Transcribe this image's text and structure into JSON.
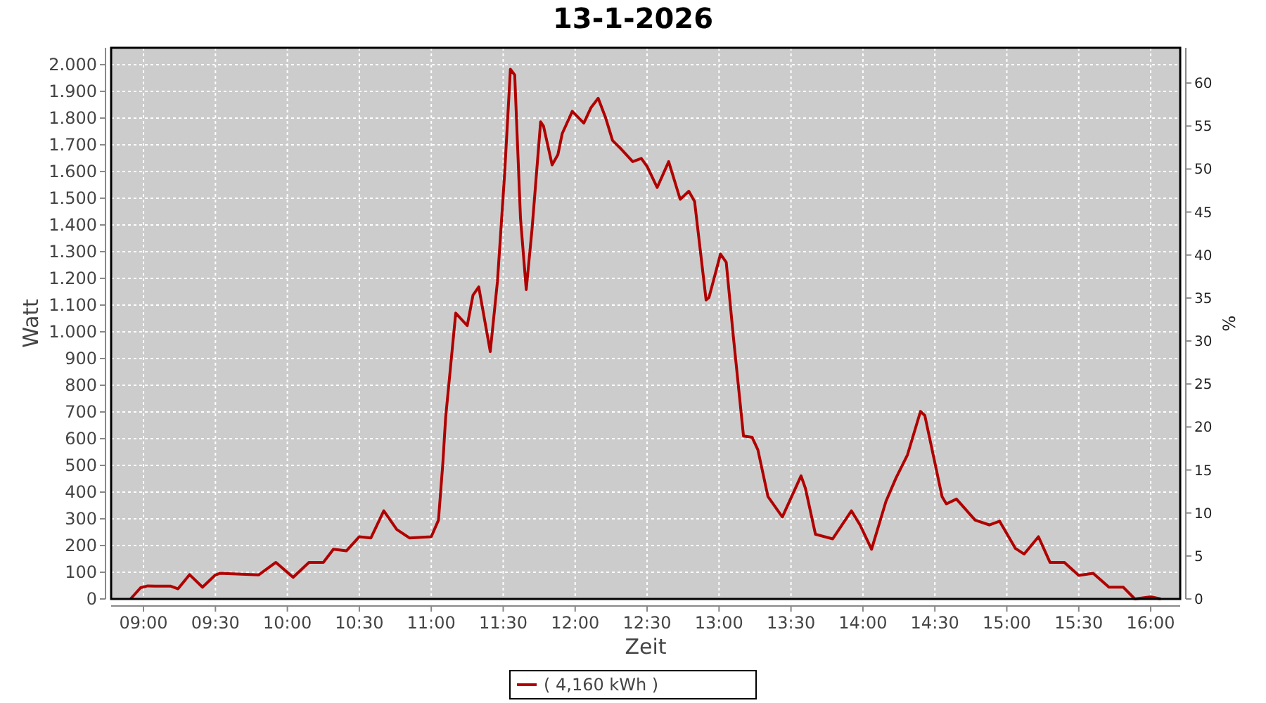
{
  "chart_data": {
    "type": "line",
    "title": "13-1-2026",
    "xlabel": "Zeit",
    "ylabel": "Watt",
    "y2label": "%",
    "x": [
      8.91,
      8.98,
      9.03,
      9.08,
      9.19,
      9.24,
      9.32,
      9.41,
      9.5,
      9.53,
      9.8,
      9.92,
      10.04,
      10.15,
      10.25,
      10.32,
      10.41,
      10.5,
      10.58,
      10.67,
      10.76,
      10.85,
      11.0,
      11.05,
      11.08,
      11.1,
      11.17,
      11.25,
      11.29,
      11.33,
      11.41,
      11.46,
      11.51,
      11.55,
      11.58,
      11.62,
      11.66,
      11.7,
      11.76,
      11.78,
      11.84,
      11.88,
      11.91,
      11.98,
      12.06,
      12.11,
      12.16,
      12.21,
      12.26,
      12.32,
      12.4,
      12.46,
      12.5,
      12.57,
      12.65,
      12.73,
      12.79,
      12.83,
      12.91,
      12.93,
      13.01,
      13.05,
      13.1,
      13.17,
      13.23,
      13.27,
      13.34,
      13.44,
      13.57,
      13.6,
      13.67,
      13.79,
      13.92,
      13.98,
      14.06,
      14.16,
      14.23,
      14.31,
      14.4,
      14.43,
      14.55,
      14.58,
      14.65,
      14.78,
      14.88,
      14.95,
      15.06,
      15.12,
      15.22,
      15.3,
      15.4,
      15.5,
      15.6,
      15.71,
      15.81,
      15.89,
      16.0,
      16.07
    ],
    "series": [
      {
        "name": "( 4,160 kWh )",
        "color": "#b00000",
        "values": [
          0,
          42,
          49,
          48,
          48,
          38,
          91,
          44,
          90,
          96,
          90,
          137,
          81,
          137,
          137,
          186,
          180,
          233,
          228,
          330,
          260,
          228,
          233,
          295,
          505,
          680,
          1070,
          1023,
          1137,
          1168,
          926,
          1189,
          1593,
          1983,
          1961,
          1426,
          1158,
          1382,
          1786,
          1770,
          1625,
          1663,
          1742,
          1825,
          1781,
          1839,
          1874,
          1804,
          1716,
          1684,
          1637,
          1649,
          1619,
          1540,
          1637,
          1496,
          1526,
          1488,
          1119,
          1128,
          1291,
          1260,
          979,
          610,
          605,
          558,
          383,
          307,
          461,
          415,
          242,
          225,
          330,
          277,
          186,
          365,
          453,
          540,
          702,
          687,
          383,
          356,
          374,
          295,
          277,
          291,
          189,
          168,
          233,
          137,
          137,
          88,
          96,
          44,
          44,
          0,
          8,
          0
        ]
      }
    ],
    "xlim": [
      8.775,
      16.205
    ],
    "xticks": [
      {
        "value": 9,
        "label": "09:00"
      },
      {
        "value": 9.5,
        "label": "09:30"
      },
      {
        "value": 10,
        "label": "10:00"
      },
      {
        "value": 10.5,
        "label": "10:30"
      },
      {
        "value": 11,
        "label": "11:00"
      },
      {
        "value": 11.5,
        "label": "11:30"
      },
      {
        "value": 12,
        "label": "12:00"
      },
      {
        "value": 12.5,
        "label": "12:30"
      },
      {
        "value": 13,
        "label": "13:00"
      },
      {
        "value": 13.5,
        "label": "13:30"
      },
      {
        "value": 14,
        "label": "14:00"
      },
      {
        "value": 14.5,
        "label": "14:30"
      },
      {
        "value": 15,
        "label": "15:00"
      },
      {
        "value": 15.5,
        "label": "15:30"
      },
      {
        "value": 16,
        "label": "16:00"
      }
    ],
    "ylim": [
      0,
      2063
    ],
    "yticks": [
      0,
      100,
      200,
      300,
      400,
      500,
      600,
      700,
      800,
      900,
      {
        "value": 1000,
        "label": "1.000"
      },
      {
        "value": 1100,
        "label": "1.100"
      },
      {
        "value": 1200,
        "label": "1.200"
      },
      {
        "value": 1300,
        "label": "1.300"
      },
      {
        "value": 1400,
        "label": "1.400"
      },
      {
        "value": 1500,
        "label": "1.500"
      },
      {
        "value": 1600,
        "label": "1.600"
      },
      {
        "value": 1700,
        "label": "1.700"
      },
      {
        "value": 1800,
        "label": "1.800"
      },
      {
        "value": 1900,
        "label": "1.900"
      },
      {
        "value": 2000,
        "label": "2.000"
      }
    ],
    "y2lim": [
      0,
      64.1
    ],
    "y2ticks": [
      0,
      5,
      10,
      15,
      20,
      25,
      30,
      35,
      40,
      45,
      50,
      55,
      60
    ],
    "grid": true,
    "legend": "bottom",
    "line_style": "solid"
  }
}
